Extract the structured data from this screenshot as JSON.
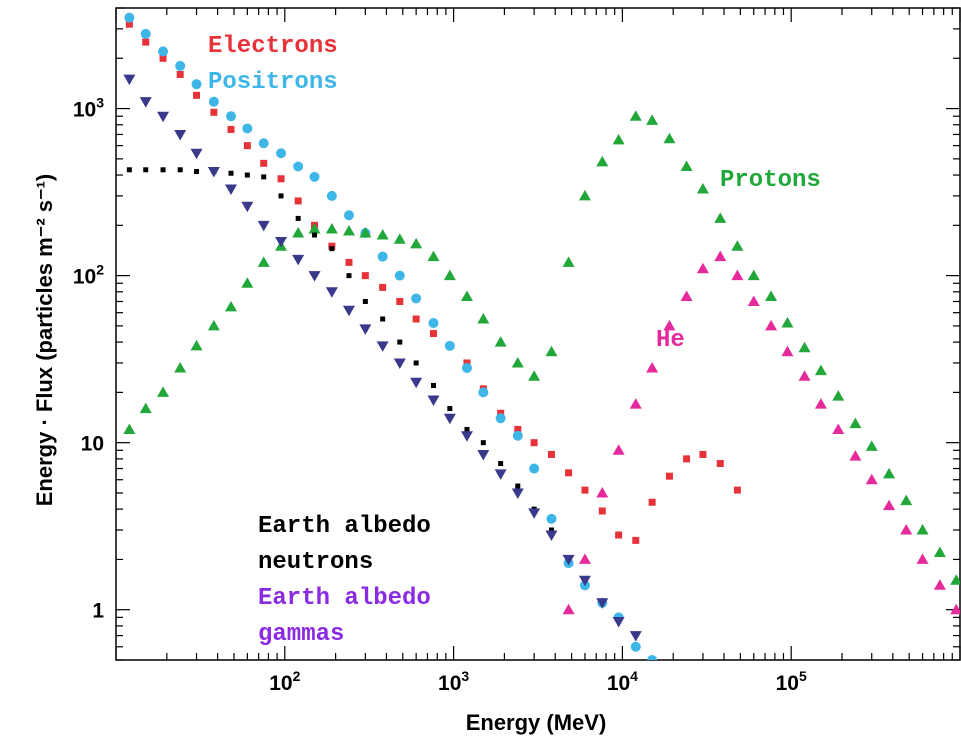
{
  "chart_data": {
    "type": "scatter",
    "xlabel": "Energy (MeV)",
    "ylabel": "Energy · Flux (particles m⁻² s⁻¹)",
    "xscale": "log",
    "yscale": "log",
    "xlim": [
      10,
      1000000
    ],
    "ylim": [
      0.5,
      4000
    ],
    "x_tick_labels": [
      {
        "value": 100,
        "base": "10",
        "exp": "2"
      },
      {
        "value": 1000,
        "base": "10",
        "exp": "3"
      },
      {
        "value": 10000,
        "base": "10",
        "exp": "4"
      },
      {
        "value": 100000,
        "base": "10",
        "exp": "5"
      }
    ],
    "y_tick_labels": [
      {
        "value": 1,
        "text": "1"
      },
      {
        "value": 10,
        "text": "10"
      },
      {
        "value": 100,
        "base": "10",
        "exp": "2"
      },
      {
        "value": 1000,
        "base": "10",
        "exp": "3"
      }
    ],
    "grid": false,
    "series": [
      {
        "name": "Electrons",
        "color": "#e8323a",
        "marker": "square",
        "x": [
          12,
          15,
          19,
          24,
          30,
          38,
          48,
          60,
          75,
          95,
          120,
          150,
          190,
          240,
          300,
          380,
          480,
          600,
          760,
          950,
          1200,
          1500,
          1900,
          2400,
          3000,
          3800,
          4800,
          6000,
          7600,
          9500,
          12000,
          15000,
          19000,
          24000,
          30000,
          38000,
          48000
        ],
        "y": [
          3200,
          2500,
          2000,
          1600,
          1200,
          950,
          750,
          600,
          470,
          380,
          280,
          200,
          150,
          120,
          100,
          85,
          70,
          55,
          45,
          38,
          30,
          21,
          15,
          12,
          10,
          8.5,
          6.6,
          5.2,
          3.9,
          2.8,
          2.6,
          4.4,
          6.3,
          8,
          8.5,
          7.5,
          5.2
        ]
      },
      {
        "name": "Positrons",
        "color": "#3fb6e8",
        "marker": "circle",
        "x": [
          12,
          15,
          19,
          24,
          30,
          38,
          48,
          60,
          75,
          95,
          120,
          150,
          190,
          240,
          300,
          380,
          480,
          600,
          760,
          950,
          1200,
          1500,
          1900,
          2400,
          3000,
          3800,
          4800,
          6000,
          7600,
          9500,
          12000,
          15000
        ],
        "y": [
          3500,
          2800,
          2200,
          1800,
          1400,
          1100,
          900,
          760,
          620,
          540,
          450,
          390,
          300,
          230,
          180,
          130,
          100,
          73,
          52,
          38,
          28,
          20,
          14,
          11,
          7,
          3.5,
          1.9,
          1.4,
          1.1,
          0.9,
          0.6,
          0.5
        ]
      },
      {
        "name": "Protons",
        "color": "#22a83a",
        "marker": "triangle-up",
        "x": [
          12,
          15,
          19,
          24,
          30,
          38,
          48,
          60,
          75,
          95,
          120,
          150,
          190,
          240,
          300,
          380,
          480,
          600,
          760,
          950,
          1200,
          1500,
          1900,
          2400,
          3000,
          3800,
          4800,
          6000,
          7600,
          9500,
          12000,
          15000,
          19000,
          24000,
          30000,
          38000,
          48000,
          60000,
          76000,
          95000,
          120000,
          150000,
          190000,
          240000,
          300000,
          380000,
          480000,
          600000,
          760000,
          950000
        ],
        "y": [
          12,
          16,
          20,
          28,
          38,
          50,
          65,
          90,
          120,
          150,
          180,
          190,
          190,
          185,
          180,
          175,
          165,
          155,
          130,
          100,
          75,
          55,
          40,
          30,
          25,
          35,
          120,
          300,
          480,
          650,
          900,
          850,
          660,
          450,
          330,
          220,
          150,
          100,
          75,
          52,
          37,
          27,
          19,
          13,
          9.5,
          6.5,
          4.5,
          3,
          2.2,
          1.5
        ]
      },
      {
        "name": "He",
        "color": "#e52b9c",
        "marker": "triangle-up",
        "x": [
          4800,
          6000,
          7600,
          9500,
          12000,
          15000,
          19000,
          24000,
          30000,
          38000,
          48000,
          60000,
          76000,
          95000,
          120000,
          150000,
          190000,
          240000,
          300000,
          380000,
          480000,
          600000,
          760000,
          950000
        ],
        "y": [
          1,
          2,
          5,
          9,
          17,
          28,
          50,
          75,
          110,
          130,
          100,
          70,
          50,
          35,
          25,
          17,
          12,
          8.3,
          6,
          4.2,
          3,
          2,
          1.4,
          1
        ]
      },
      {
        "name": "Earth albedo neutrons",
        "color": "#000000",
        "marker": "square",
        "x": [
          12,
          15,
          19,
          24,
          30,
          38,
          48,
          60,
          75,
          95,
          120,
          150,
          190,
          240,
          300,
          380,
          480,
          600,
          760,
          950,
          1200,
          1500,
          1900,
          2400,
          3000,
          3800
        ],
        "y": [
          430,
          430,
          430,
          430,
          420,
          420,
          410,
          400,
          390,
          300,
          220,
          175,
          145,
          100,
          70,
          55,
          40,
          30,
          22,
          16,
          12,
          10,
          7.5,
          5.5,
          4,
          3
        ]
      },
      {
        "name": "Earth albedo gammas",
        "color": "#3a3a8c",
        "marker": "triangle-down",
        "x": [
          12,
          15,
          19,
          24,
          30,
          38,
          48,
          60,
          75,
          95,
          120,
          150,
          190,
          240,
          300,
          380,
          480,
          600,
          760,
          950,
          1200,
          1500,
          1900,
          2400,
          3000,
          3800,
          4800,
          6000,
          7600,
          9500,
          12000
        ],
        "y": [
          1500,
          1100,
          900,
          700,
          540,
          420,
          330,
          260,
          200,
          160,
          125,
          100,
          80,
          62,
          48,
          38,
          30,
          23,
          18,
          14,
          11,
          8.5,
          6.5,
          5,
          3.8,
          2.8,
          2,
          1.5,
          1.1,
          0.85,
          0.7
        ]
      }
    ],
    "annotations": [
      {
        "text": "Electrons",
        "color": "#e8323a"
      },
      {
        "text": "Positrons",
        "color": "#3fb6e8"
      },
      {
        "text": "Protons",
        "color": "#22a83a"
      },
      {
        "text": "He",
        "color": "#e52b9c"
      },
      {
        "text": "Earth albedo",
        "color": "#000000"
      },
      {
        "text": "neutrons",
        "color": "#000000"
      },
      {
        "text": "Earth albedo",
        "color": "#8a2be2"
      },
      {
        "text": "gammas",
        "color": "#8a2be2"
      }
    ]
  }
}
